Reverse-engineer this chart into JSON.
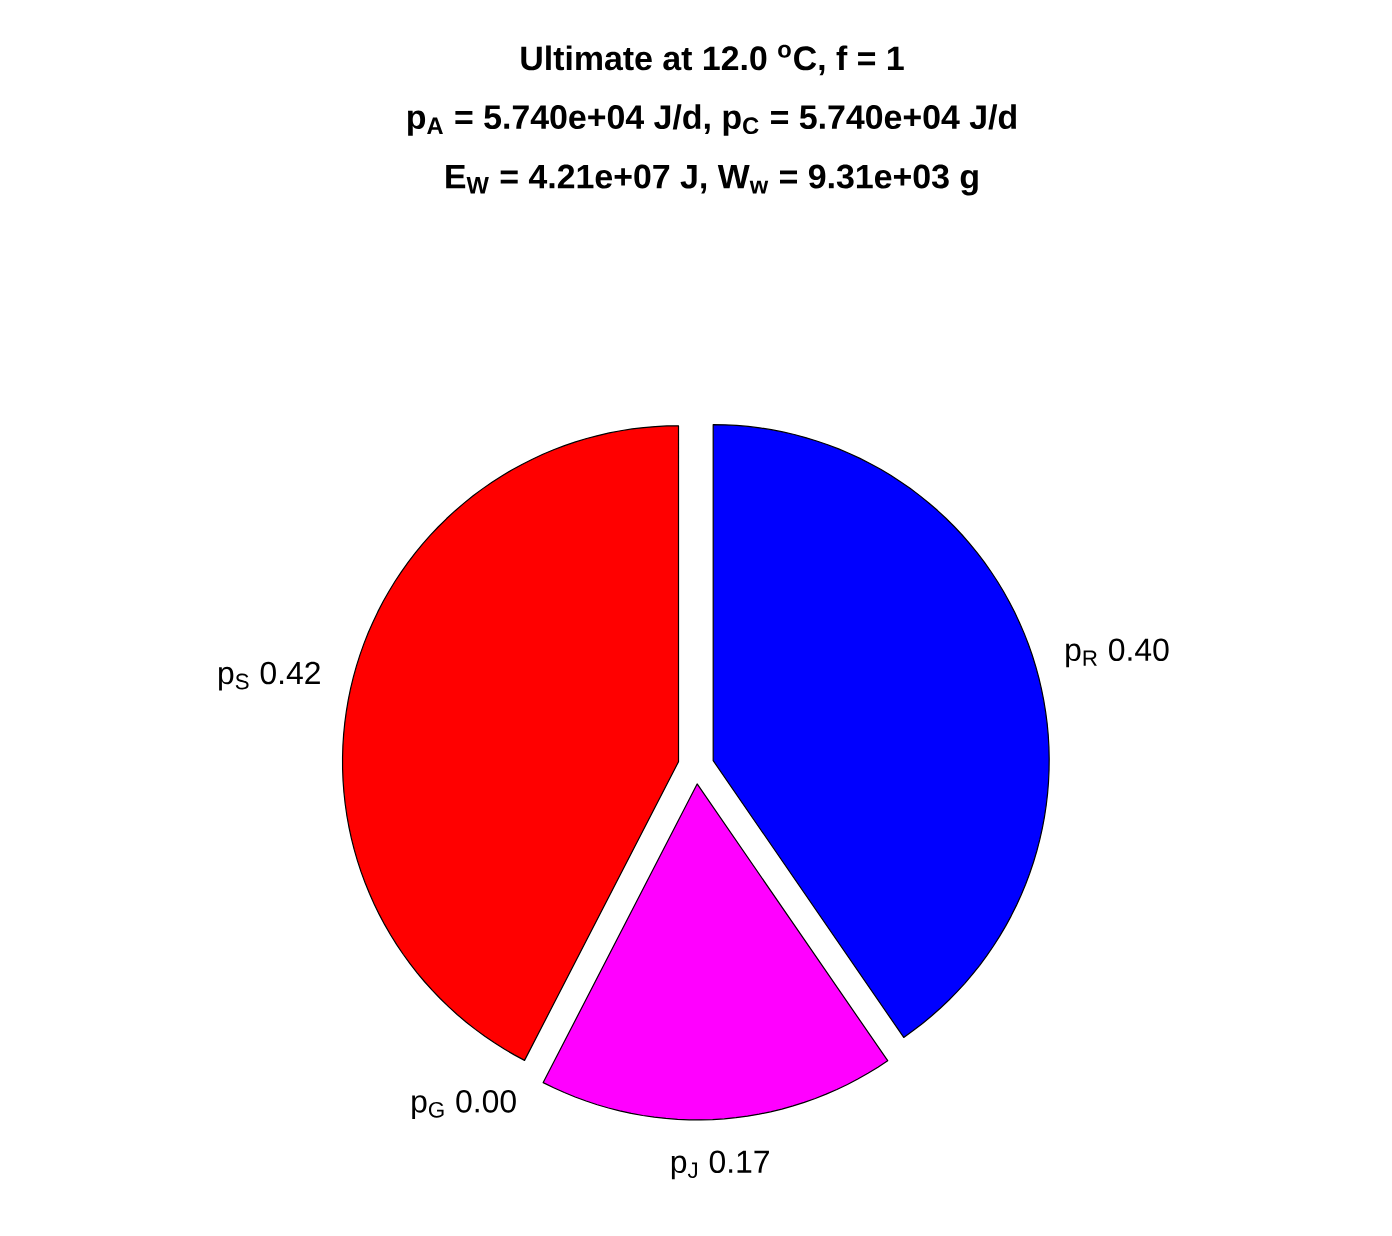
{
  "chart_data": {
    "type": "pie",
    "title": [
      "Ultimate at 12.0 $^{o}$C, f = 1",
      "p$_{A}$ = 5.740e+04 J/d, p$_{C}$ = 5.740e+04 J/d",
      "E$_{W}$ = 4.21e+07 J, W$_{w}$ = 9.31e+03 g"
    ],
    "categories": [
      "p$_{R}$",
      "p$_{J}$",
      "p$_{G}$",
      "p$_{S}$"
    ],
    "values": [
      0.4,
      0.17,
      0.0,
      0.42
    ],
    "value_labels": [
      "0.40",
      "0.17",
      "0.00",
      "0.42"
    ],
    "colors": [
      "#0000ff",
      "#ff00ff",
      "#ffffff",
      "#ff0000"
    ]
  }
}
